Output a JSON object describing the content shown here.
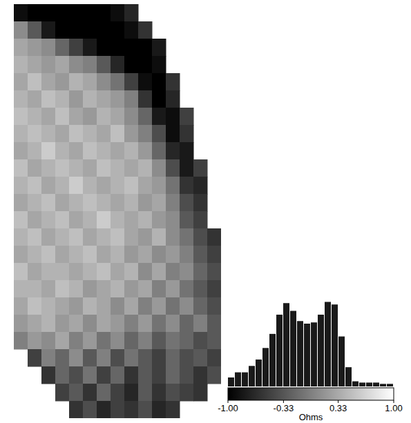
{
  "chart_data": [
    {
      "type": "heatmap",
      "tick_labels": false,
      "cells": [
        [
          null,
          -0.9,
          -1,
          -1,
          -1,
          -1,
          -1,
          -1,
          -0.9,
          -0.7,
          null,
          null,
          null,
          null,
          null,
          null
        ],
        [
          null,
          0.1,
          -0.3,
          -0.8,
          -1,
          -1,
          -1,
          -1,
          -1,
          -0.9,
          -0.6,
          null,
          null,
          null,
          null,
          null
        ],
        [
          null,
          0.3,
          0.2,
          0.1,
          -0.2,
          -0.5,
          -0.8,
          -1,
          -1,
          -1,
          -1,
          -0.8,
          null,
          null,
          null,
          null
        ],
        [
          null,
          0.4,
          0.3,
          0.2,
          0.3,
          0.1,
          0.0,
          -0.3,
          -0.7,
          -1,
          -1,
          -0.9,
          null,
          null,
          null,
          null
        ],
        [
          null,
          0.3,
          0.5,
          0.3,
          0.2,
          0.4,
          0.3,
          0.1,
          -0.1,
          -0.5,
          -0.9,
          -1,
          -0.6,
          null,
          null,
          null
        ],
        [
          null,
          0.4,
          0.3,
          0.5,
          0.4,
          0.2,
          0.4,
          0.3,
          0.2,
          0.0,
          -0.6,
          -1,
          -0.7,
          null,
          null,
          null
        ],
        [
          null,
          0.5,
          0.4,
          0.3,
          0.5,
          0.3,
          0.2,
          0.4,
          0.3,
          0.1,
          -0.2,
          -0.8,
          -0.9,
          -0.5,
          null,
          null
        ],
        [
          null,
          0.4,
          0.5,
          0.4,
          0.3,
          0.5,
          0.4,
          0.3,
          0.5,
          0.2,
          0.0,
          -0.4,
          -0.9,
          -0.6,
          null,
          null
        ],
        [
          null,
          0.3,
          0.4,
          0.6,
          0.4,
          0.3,
          0.5,
          0.4,
          0.3,
          0.4,
          0.2,
          -0.2,
          -0.7,
          -0.8,
          null,
          null
        ],
        [
          null,
          0.5,
          0.3,
          0.4,
          0.5,
          0.4,
          0.3,
          0.5,
          0.4,
          0.3,
          0.4,
          0.1,
          -0.4,
          -0.8,
          -0.5,
          null
        ],
        [
          null,
          0.4,
          0.5,
          0.3,
          0.4,
          0.6,
          0.4,
          0.3,
          0.4,
          0.5,
          0.3,
          0.2,
          -0.1,
          -0.6,
          -0.7,
          null
        ],
        [
          null,
          0.3,
          0.4,
          0.5,
          0.3,
          0.4,
          0.5,
          0.4,
          0.3,
          0.4,
          0.2,
          0.3,
          0.0,
          -0.4,
          -0.6,
          null
        ],
        [
          null,
          0.5,
          0.3,
          0.4,
          0.5,
          0.3,
          0.4,
          0.6,
          0.4,
          0.3,
          0.4,
          0.2,
          0.1,
          -0.3,
          -0.5,
          null
        ],
        [
          null,
          0.4,
          0.5,
          0.3,
          0.4,
          0.5,
          0.3,
          0.4,
          0.5,
          0.3,
          0.2,
          0.4,
          0.1,
          -0.1,
          -0.4,
          -0.6
        ],
        [
          null,
          0.3,
          0.4,
          0.5,
          0.3,
          0.4,
          0.5,
          0.3,
          0.4,
          0.2,
          0.3,
          0.1,
          0.2,
          0.0,
          -0.3,
          -0.5
        ],
        [
          null,
          0.5,
          0.3,
          0.4,
          0.4,
          0.3,
          0.4,
          0.5,
          0.3,
          0.4,
          0.1,
          0.3,
          0.0,
          0.1,
          -0.2,
          -0.4
        ],
        [
          null,
          0.4,
          0.4,
          0.3,
          0.5,
          0.4,
          0.2,
          0.3,
          0.4,
          0.2,
          0.3,
          0.0,
          0.2,
          -0.1,
          -0.3,
          -0.5
        ],
        [
          null,
          0.3,
          0.5,
          0.4,
          0.3,
          0.2,
          0.4,
          0.3,
          0.1,
          0.3,
          0.0,
          0.2,
          -0.1,
          0.1,
          -0.2,
          -0.4
        ],
        [
          null,
          0.2,
          0.3,
          0.4,
          0.2,
          0.3,
          0.1,
          0.3,
          0.2,
          0.0,
          0.2,
          -0.1,
          0.1,
          -0.2,
          0.0,
          -0.3
        ],
        [
          null,
          0.0,
          0.2,
          0.1,
          0.3,
          0.0,
          0.2,
          -0.1,
          0.1,
          -0.2,
          0.0,
          -0.3,
          -0.1,
          -0.2,
          -0.4,
          -0.3
        ],
        [
          null,
          null,
          -0.5,
          0.0,
          -0.2,
          0.1,
          -0.3,
          0.0,
          -0.4,
          -0.1,
          -0.3,
          -0.5,
          -0.2,
          -0.4,
          -0.3,
          -0.5
        ],
        [
          null,
          null,
          null,
          -0.6,
          -0.2,
          -0.4,
          -0.1,
          -0.5,
          -0.2,
          -0.6,
          -0.3,
          -0.5,
          -0.2,
          -0.4,
          -0.6,
          -0.4
        ],
        [
          null,
          null,
          null,
          null,
          -0.5,
          -0.3,
          -0.6,
          -0.2,
          -0.5,
          -0.7,
          -0.3,
          -0.6,
          -0.4,
          -0.5,
          -0.6,
          null
        ],
        [
          null,
          null,
          null,
          null,
          null,
          -0.6,
          -0.4,
          -0.7,
          -0.5,
          -0.6,
          -0.4,
          -0.7,
          -0.6,
          null,
          null,
          null
        ]
      ],
      "colorbar": {
        "range": [
          -1,
          1
        ],
        "ticks": [
          {
            "value": -1,
            "label": "-1.00"
          },
          -0.33,
          0.33,
          {
            "value": 1,
            "label": "1.00"
          }
        ],
        "label": "Ohms"
      }
    },
    {
      "type": "histogram",
      "tick_labels": false,
      "color": "#1a1a1a",
      "ylim": [
        0,
        140
      ],
      "bins": [
        -1,
        -0.9167,
        -0.8333,
        -0.75,
        -0.6667,
        -0.5833,
        -0.5,
        -0.4167,
        -0.3333,
        -0.25,
        -0.1667,
        -0.0833,
        0,
        0.0833,
        0.1667,
        0.25,
        0.3333,
        0.4167,
        0.5,
        0.5833,
        0.6667,
        0.75,
        0.8333,
        0.9167,
        1
      ],
      "counts": [
        14,
        22,
        22,
        32,
        42,
        60,
        82,
        112,
        130,
        118,
        102,
        98,
        100,
        112,
        132,
        128,
        78,
        30,
        8,
        6,
        6,
        6,
        4,
        4
      ]
    }
  ]
}
